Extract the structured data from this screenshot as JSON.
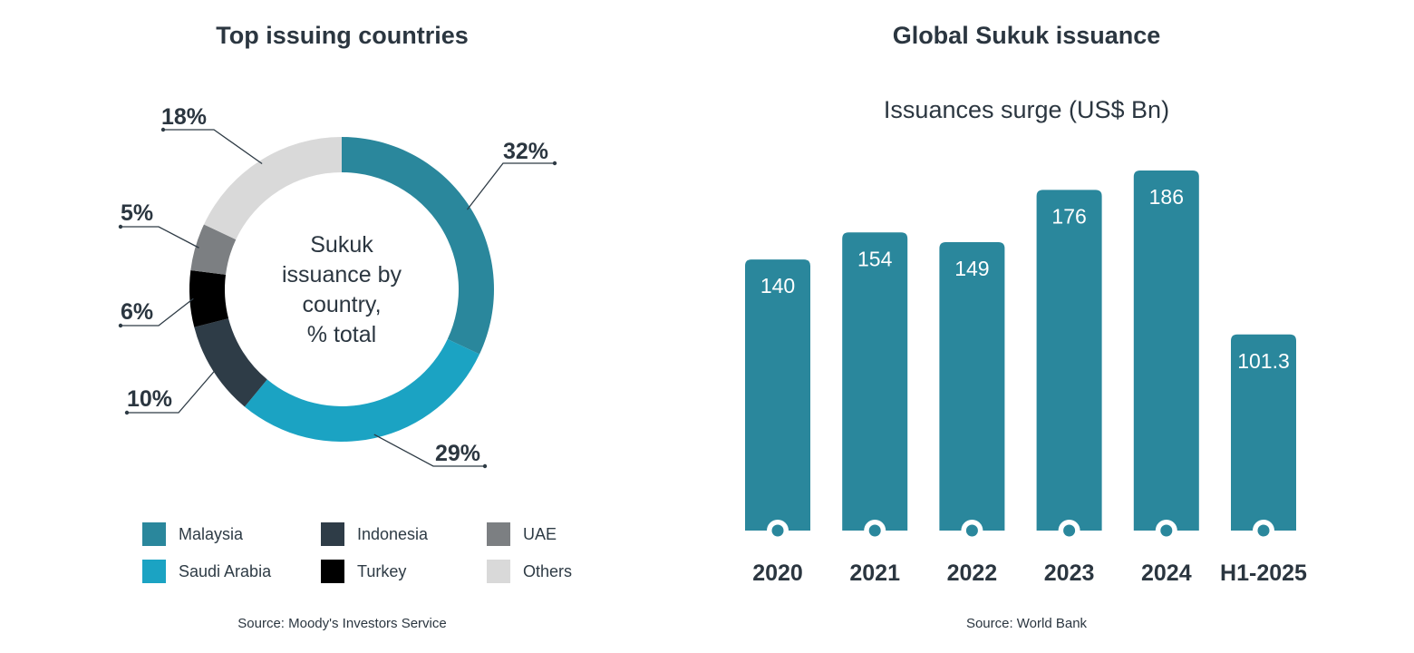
{
  "left": {
    "title": "Top issuing countries",
    "center_lines": [
      "Sukuk",
      "issuance by",
      "country,",
      "% total"
    ],
    "source": "Source: Moody's Investors Service"
  },
  "right": {
    "title": "Global Sukuk issuance",
    "subtitle": "Issuances surge (US$ Bn)",
    "source": "Source: World Bank"
  },
  "chart_data": [
    {
      "type": "pie",
      "title": "Top issuing countries",
      "slices": [
        {
          "label": "Malaysia",
          "value": 32,
          "display": "32%",
          "color": "#2a879c"
        },
        {
          "label": "Saudi Arabia",
          "value": 29,
          "display": "29%",
          "color": "#1ba3c3"
        },
        {
          "label": "Indonesia",
          "value": 10,
          "display": "10%",
          "color": "#2e3c47"
        },
        {
          "label": "Turkey",
          "value": 6,
          "display": "6%",
          "color": "#000000"
        },
        {
          "label": "UAE",
          "value": 5,
          "display": "5%",
          "color": "#7c7f82"
        },
        {
          "label": "Others",
          "value": 18,
          "display": "18%",
          "color": "#d9d9d9"
        }
      ],
      "legend_placement": "bottom"
    },
    {
      "type": "bar",
      "title": "Global Sukuk issuance",
      "subtitle": "Issuances surge (US$ Bn)",
      "categories": [
        "2020",
        "2021",
        "2022",
        "2023",
        "2024",
        "H1-2025"
      ],
      "values": [
        140,
        154,
        149,
        176,
        186,
        101.3
      ],
      "value_labels": [
        "140",
        "154",
        "149",
        "176",
        "186",
        "101.3"
      ],
      "color": "#2a879c",
      "grid": false
    }
  ]
}
